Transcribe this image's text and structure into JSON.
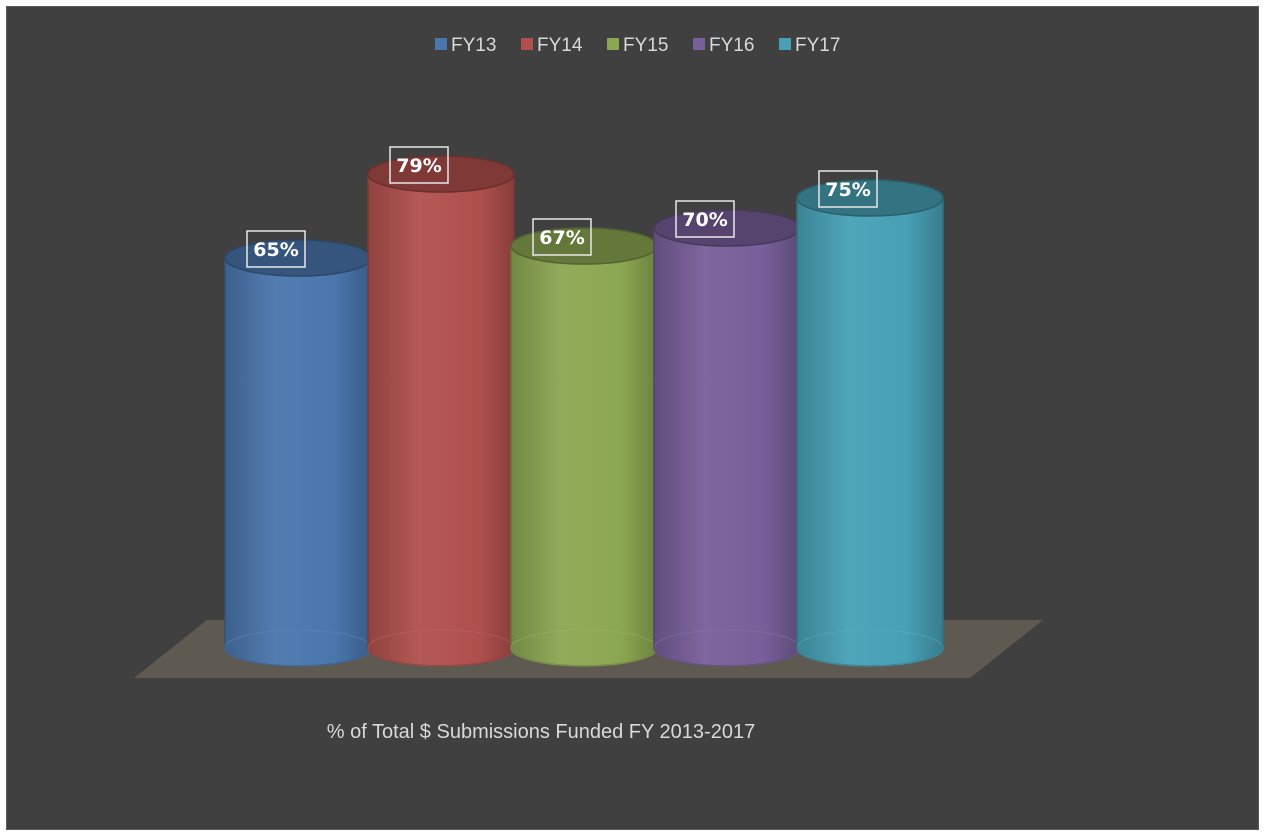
{
  "chart_data": {
    "type": "bar",
    "style": "3d-cylinder",
    "categories": [
      "% of Total $ Submissions Funded FY 2013-2017"
    ],
    "xlabel": "% of Total $ Submissions Funded FY 2013-2017",
    "ylim": [
      0,
      100
    ],
    "legend_position": "top",
    "grid": false,
    "series": [
      {
        "name": "FY13",
        "value": 65,
        "label": "65%",
        "color": "#4a76ad"
      },
      {
        "name": "FY14",
        "value": 79,
        "label": "79%",
        "color": "#b0504d"
      },
      {
        "name": "FY15",
        "value": 67,
        "label": "67%",
        "color": "#8ca752"
      },
      {
        "name": "FY16",
        "value": 70,
        "label": "70%",
        "color": "#775f99"
      },
      {
        "name": "FY17",
        "value": 75,
        "label": "75%",
        "color": "#47a0b5"
      }
    ]
  },
  "colors": {
    "background": "#404040",
    "floor": "#5e5a52",
    "text": "#d9d9d9"
  }
}
